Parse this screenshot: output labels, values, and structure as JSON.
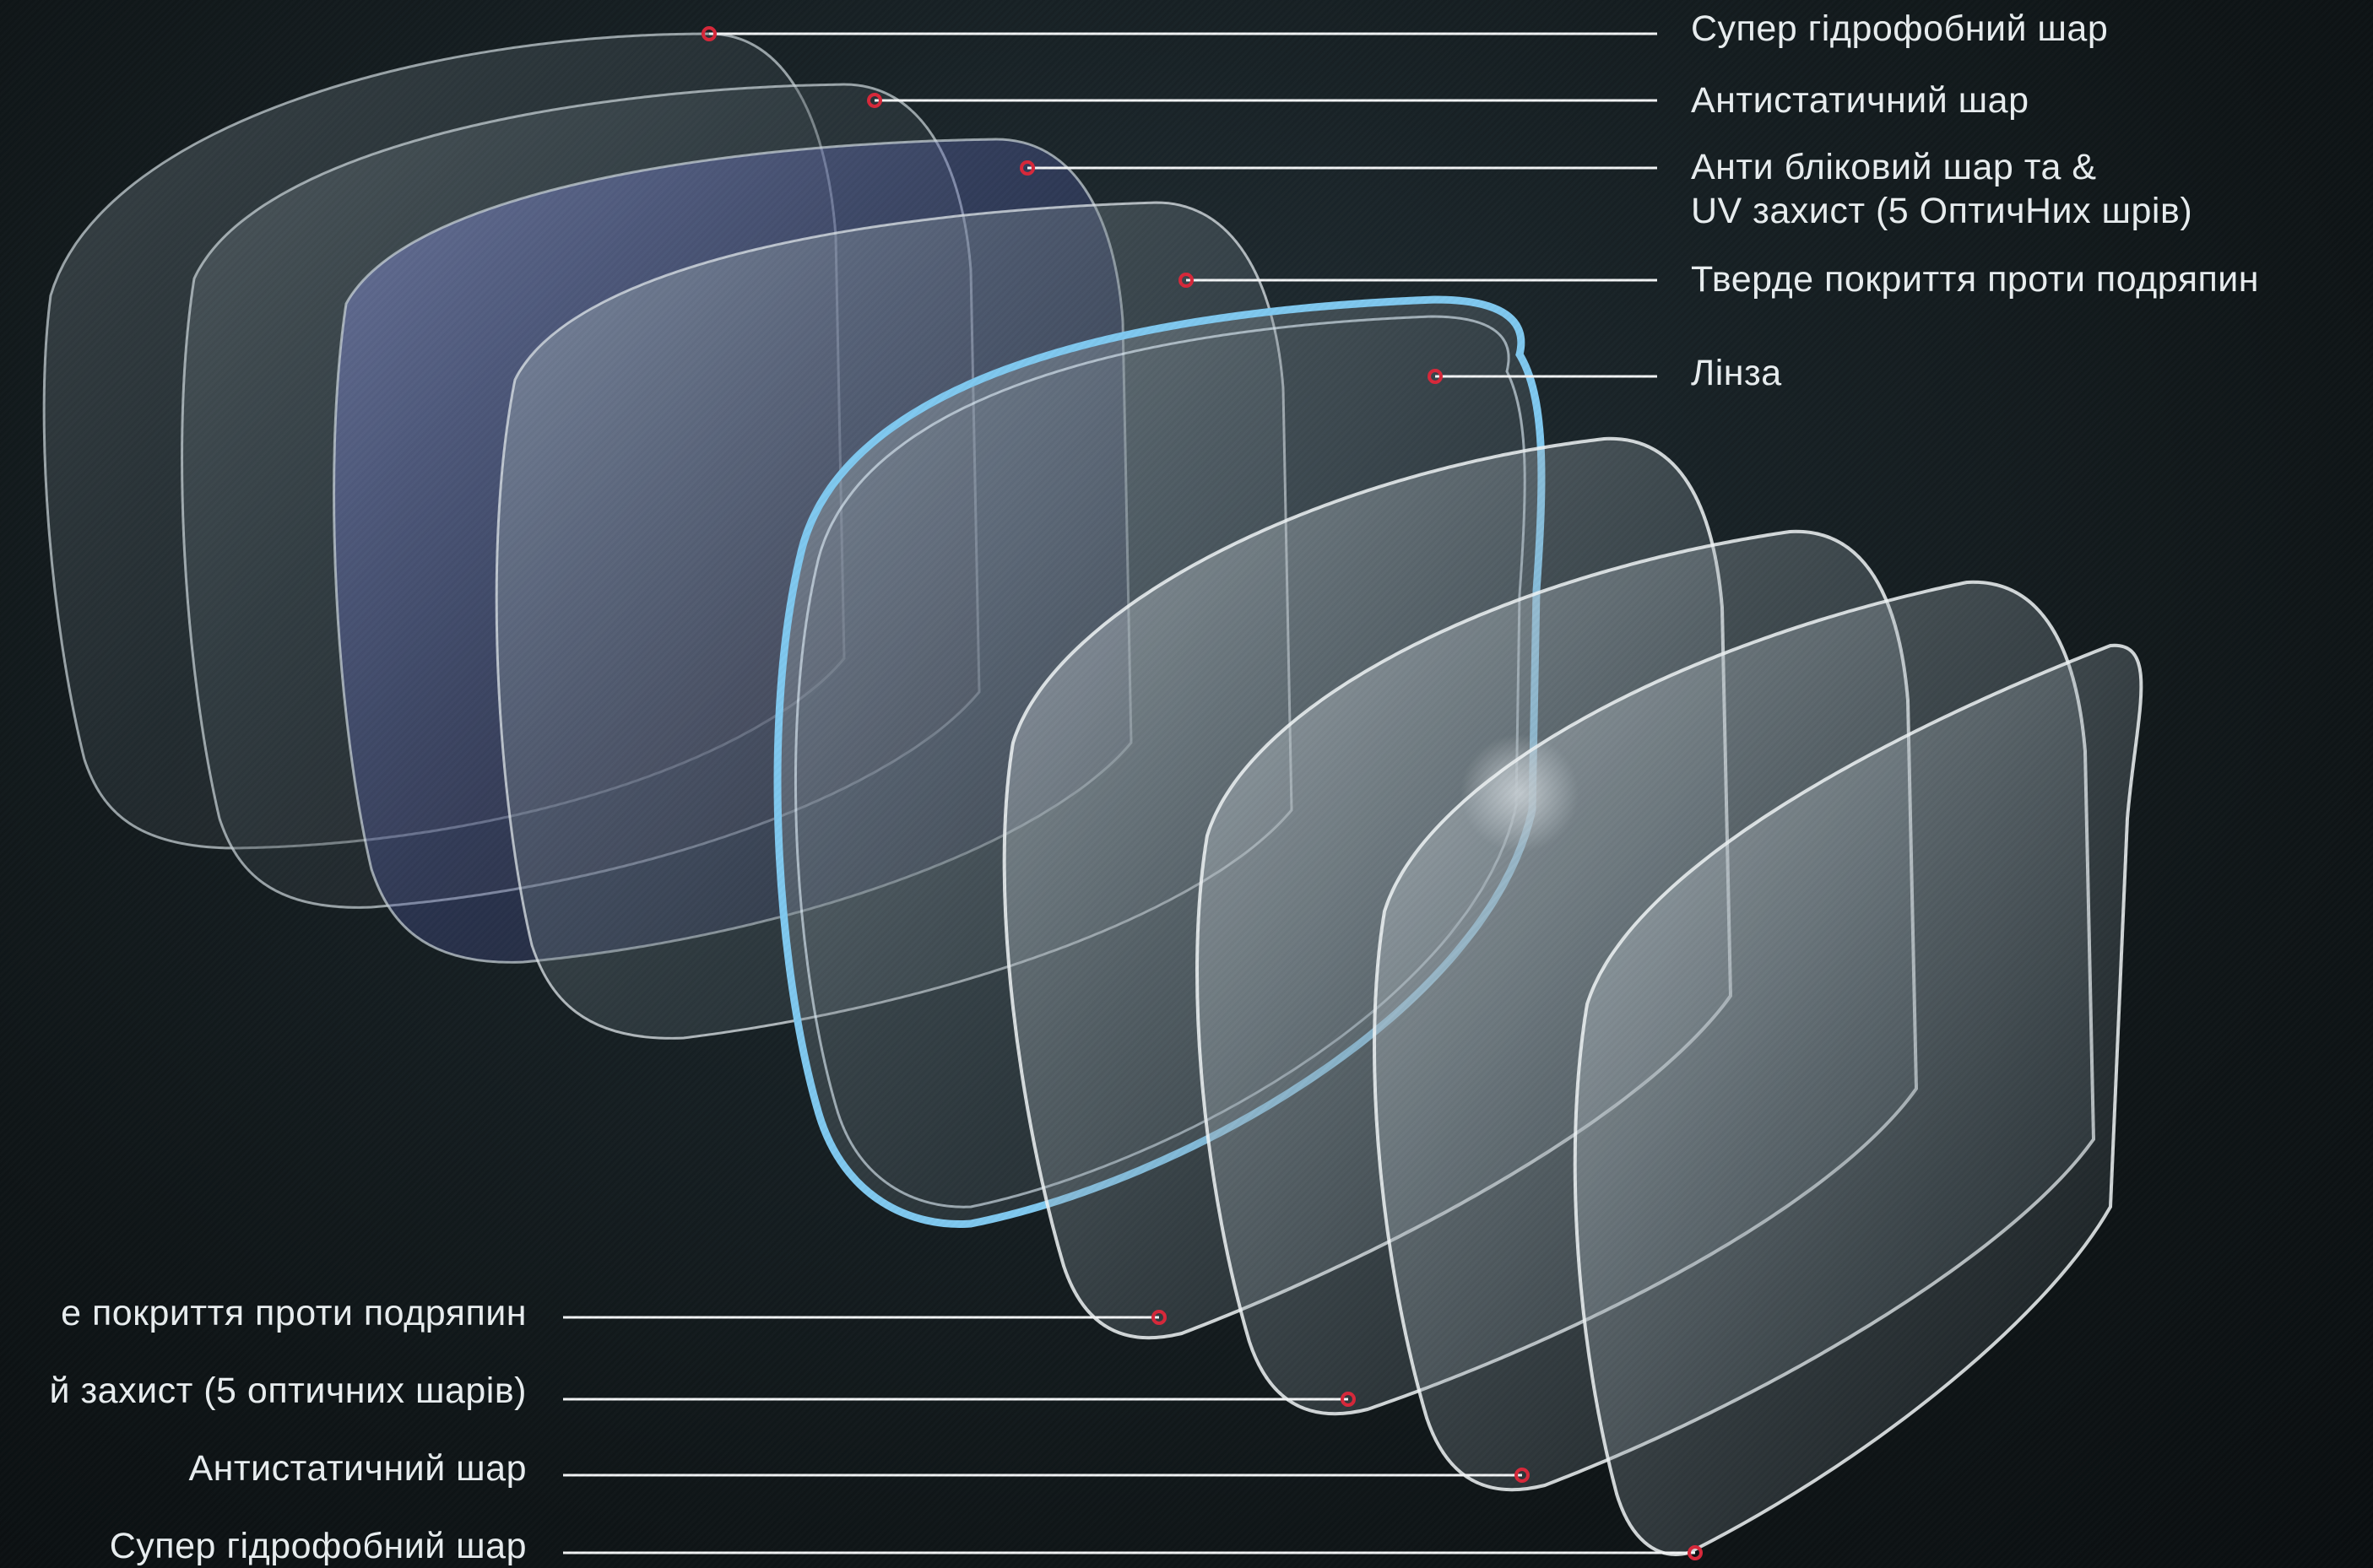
{
  "diagram": {
    "upper_labels": [
      {
        "lines": [
          "Супер гідрофобний шар"
        ]
      },
      {
        "lines": [
          "Антистатичний шар"
        ]
      },
      {
        "lines": [
          "Анти бліковий шар та &",
          "UV захист (5 ОптичНих шрів)"
        ]
      },
      {
        "lines": [
          "Тверде покриття проти подряпин"
        ]
      },
      {
        "lines": [
          "Лінза"
        ]
      }
    ],
    "lower_labels": [
      {
        "lines": [
          "е покриття проти подряпин"
        ]
      },
      {
        "lines": [
          "й захист (5  оптичних шарів)"
        ]
      },
      {
        "lines": [
          "Антистатичний шар"
        ]
      },
      {
        "lines": [
          "Супер гідрофобний шар"
        ]
      }
    ],
    "colors": {
      "background": "#0e1416",
      "leader_line": "#f2f4f5",
      "marker": "#d8283a",
      "text": "#e9eef0",
      "lens_rim": "#7fc8ef"
    }
  }
}
